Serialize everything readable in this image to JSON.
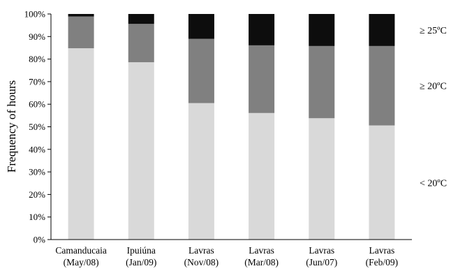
{
  "chart_data": {
    "type": "bar",
    "stacked": true,
    "percent": true,
    "title": "",
    "xlabel": "",
    "ylabel": "Frequency of hours",
    "ylim": [
      0,
      100
    ],
    "yticks": [
      "0%",
      "10%",
      "20%",
      "30%",
      "40%",
      "50%",
      "60%",
      "70%",
      "80%",
      "90%",
      "100%"
    ],
    "categories": [
      [
        "Camanducaia",
        "(May/08)"
      ],
      [
        "Ipuiúna",
        "(Jan/09)"
      ],
      [
        "Lavras",
        "(Nov/08)"
      ],
      [
        "Lavras",
        "(Mar/08)"
      ],
      [
        "Lavras",
        "(Jun/07)"
      ],
      [
        "Lavras",
        "(Feb/09)"
      ]
    ],
    "series": [
      {
        "name": "< 20ºC",
        "color": "#d9d9d9",
        "values": [
          84.8,
          78.6,
          60.5,
          56.1,
          53.8,
          50.6
        ]
      },
      {
        "name": "≥ 20ºC",
        "color": "#808080",
        "values": [
          14.1,
          17.0,
          28.5,
          30.0,
          32.0,
          35.2
        ]
      },
      {
        "name": "≥ 25ºC",
        "color": "#0d0d0d",
        "values": [
          1.1,
          4.4,
          11.0,
          13.9,
          14.2,
          14.2
        ]
      }
    ],
    "legend_position": "right, inline labels"
  }
}
